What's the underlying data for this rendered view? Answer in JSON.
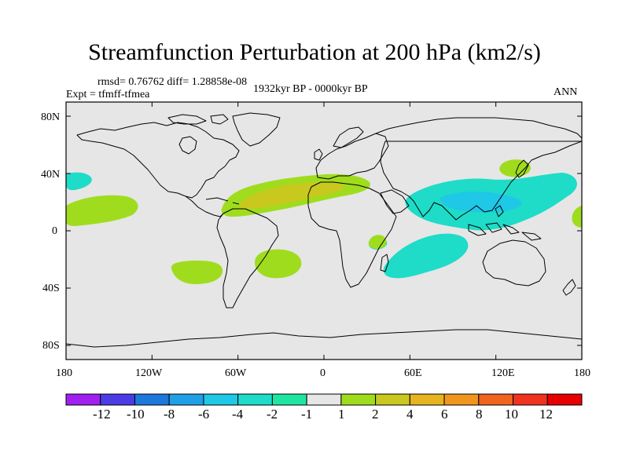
{
  "title": "Streamfunction Perturbation at 200 hPa (km2/s)",
  "stats": "rmsd= 0.76762 diff= 1.28858e-08",
  "experiment": "Expt = tfmff-tfmea",
  "period": "1932kyr BP - 0000kyr BP",
  "season": "ANN",
  "lat_labels": [
    "80N",
    "40N",
    "0",
    "40S",
    "80S"
  ],
  "lon_labels": [
    "180",
    "120W",
    "60W",
    "0",
    "60E",
    "120E",
    "180"
  ],
  "colorbar": {
    "labels": [
      "-12",
      "-10",
      "-8",
      "-6",
      "-4",
      "-2",
      "-1",
      "1",
      "2",
      "4",
      "6",
      "8",
      "10",
      "12"
    ],
    "colors": [
      "#a020f0",
      "#4b3ce6",
      "#1e78dc",
      "#1ea0e6",
      "#1ec8e6",
      "#1edcc8",
      "#1ee6a0",
      "#e6e6e6",
      "#a0dc1e",
      "#c8c81e",
      "#e6b41e",
      "#f0961e",
      "#f0641e",
      "#f0321e",
      "#e60000"
    ]
  },
  "map_colors": {
    "background": "#e6e6e6",
    "coast": "#000000"
  }
}
